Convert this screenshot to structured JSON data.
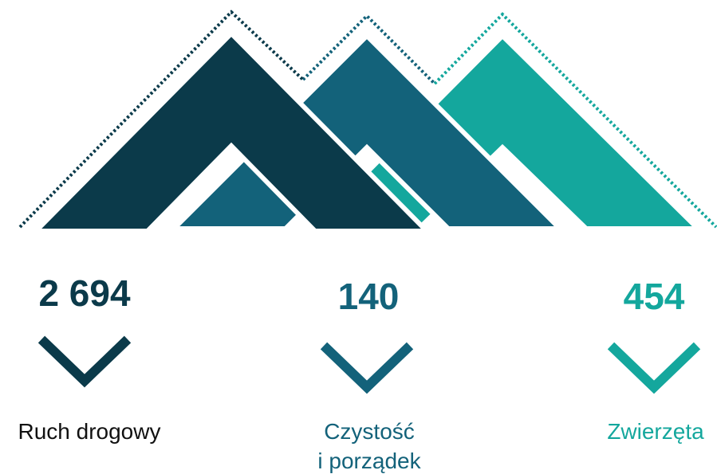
{
  "items": [
    {
      "value": "2 694",
      "label": [
        "Ruch drogowy"
      ]
    },
    {
      "value": "140",
      "label": [
        "Czystość",
        "i porządek"
      ]
    },
    {
      "value": "454",
      "label": [
        "Zwierzęta"
      ]
    }
  ]
}
